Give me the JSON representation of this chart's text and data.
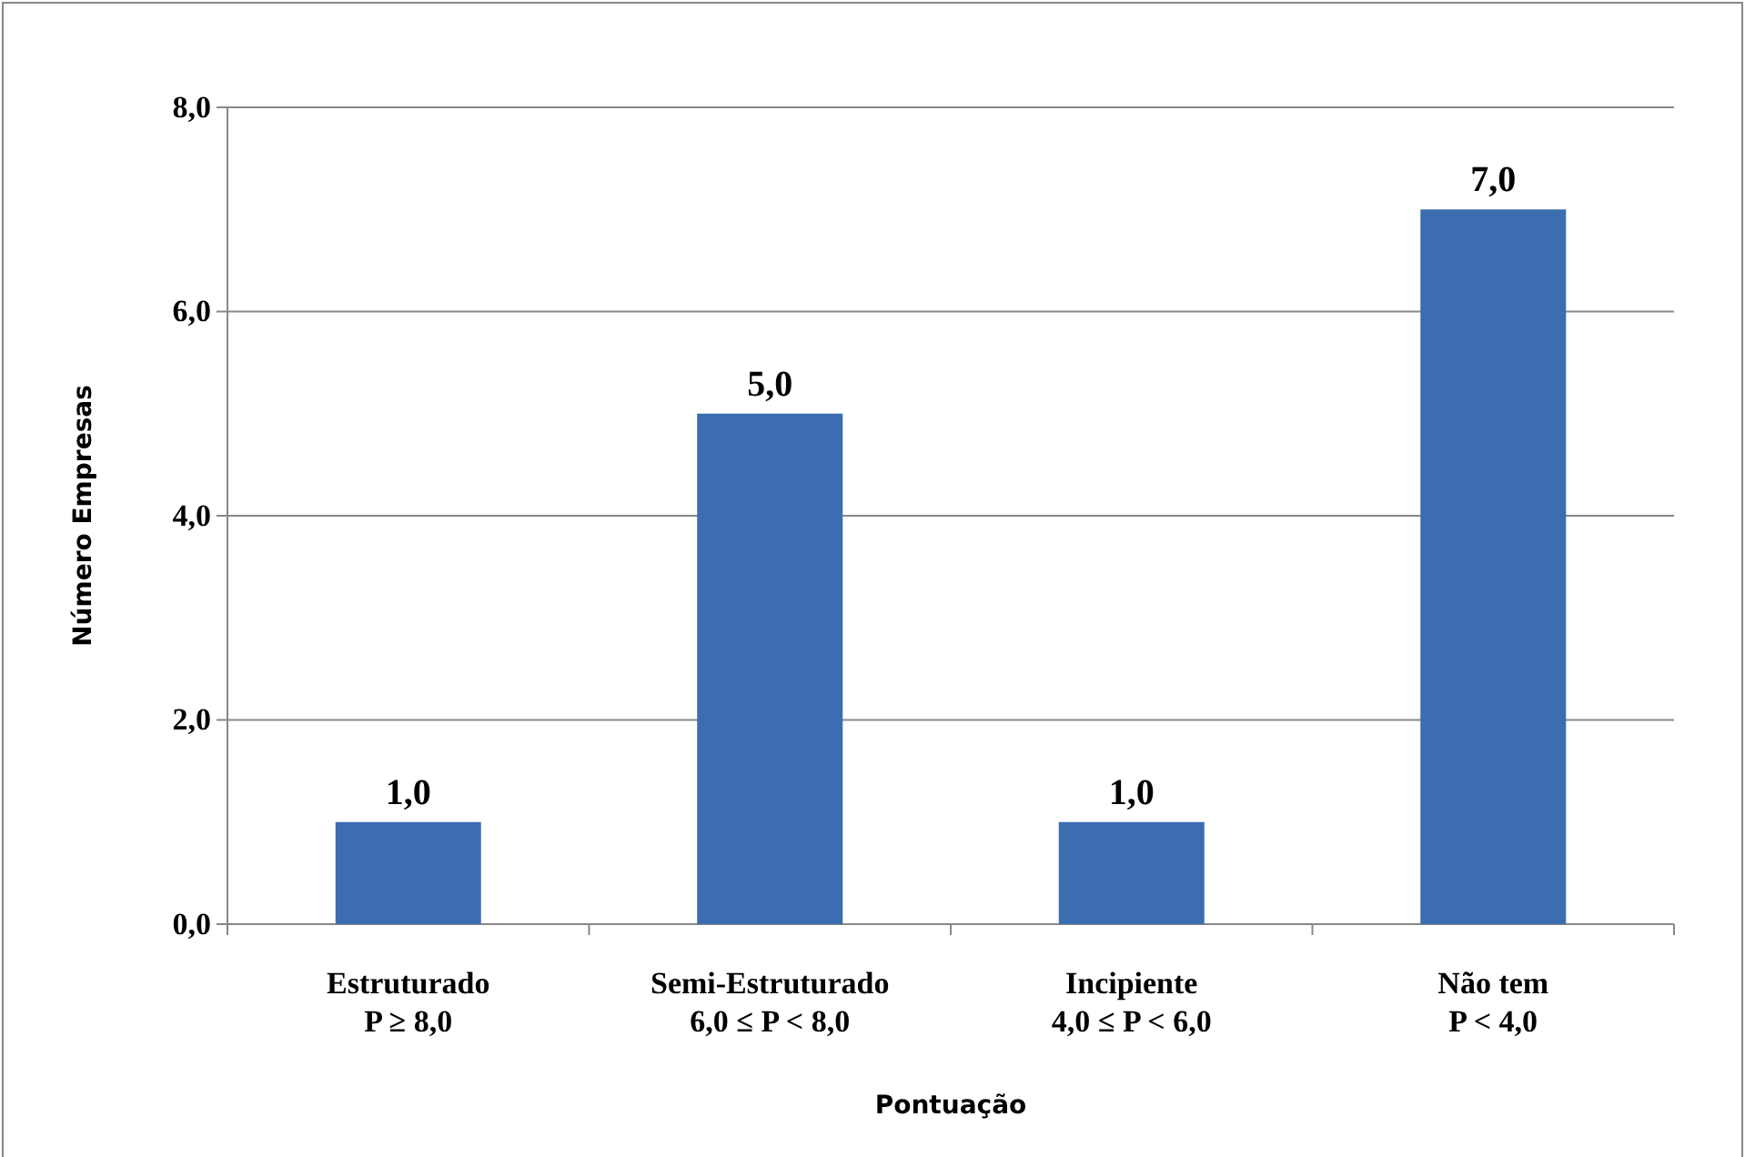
{
  "chart_data": {
    "type": "bar",
    "categories": [
      "Estruturado\nP ≥ 8,0",
      "Semi-Estruturado\n6,0 ≤ P < 8,0",
      "Incipiente\n4,0 ≤ P < 6,0",
      "Não tem\nP < 4,0"
    ],
    "values": [
      1,
      5,
      1,
      7
    ],
    "value_labels": [
      "1,0",
      "5,0",
      "1,0",
      "7,0"
    ],
    "color": "#3b6db0",
    "xlabel": "Pontuação",
    "ylabel": "Número Empresas",
    "ylim": [
      0,
      8
    ],
    "yticks": [
      {
        "value": 0,
        "label": "0,0"
      },
      {
        "value": 2,
        "label": "2,0"
      },
      {
        "value": 4,
        "label": "4,0"
      },
      {
        "value": 6,
        "label": "6,0"
      },
      {
        "value": 8,
        "label": "8,0"
      }
    ],
    "grid": "y"
  }
}
